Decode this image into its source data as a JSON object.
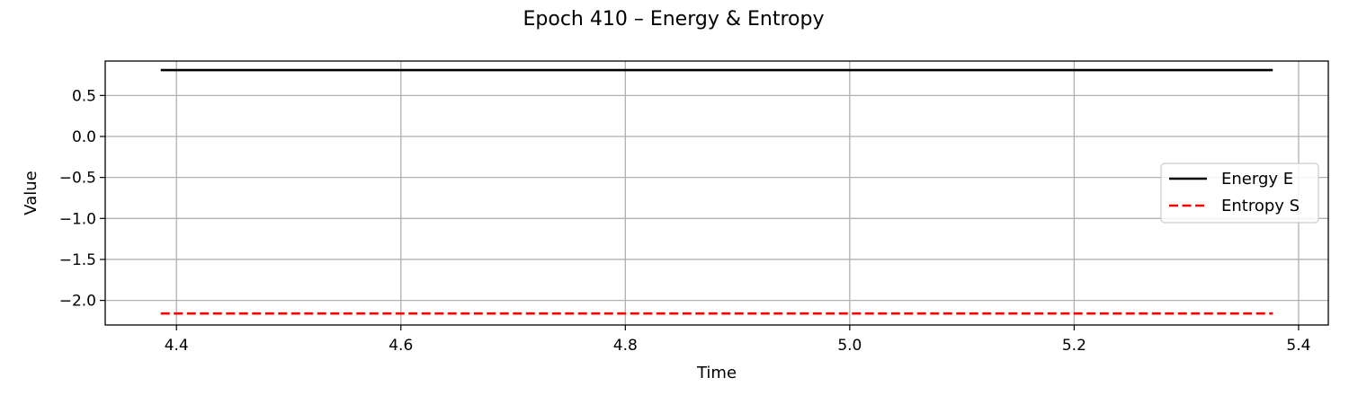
{
  "chart_data": {
    "type": "line",
    "title": "Epoch 410 – Energy & Entropy",
    "xlabel": "Time",
    "ylabel": "Value",
    "xlim": [
      4.3365,
      5.4265
    ],
    "ylim": [
      -2.3,
      0.92
    ],
    "xticks": [
      4.4,
      4.6,
      4.8,
      5.0,
      5.2,
      5.4
    ],
    "xtick_labels": [
      "4.4",
      "4.6",
      "4.8",
      "5.0",
      "5.2",
      "5.4"
    ],
    "yticks": [
      0.5,
      0.0,
      -0.5,
      -1.0,
      -1.5,
      -2.0
    ],
    "ytick_labels": [
      "0.5",
      "0.0",
      "−0.5",
      "−1.0",
      "−1.5",
      "−2.0"
    ],
    "grid": true,
    "legend_position": "center-right",
    "series": [
      {
        "name": "Energy E",
        "color": "#000000",
        "style": "solid",
        "x": [
          4.386,
          5.377
        ],
        "y": [
          0.81,
          0.81
        ]
      },
      {
        "name": "Entropy S",
        "color": "#ff0000",
        "style": "dashed",
        "x": [
          4.386,
          5.377
        ],
        "y": [
          -2.16,
          -2.16
        ]
      }
    ]
  }
}
